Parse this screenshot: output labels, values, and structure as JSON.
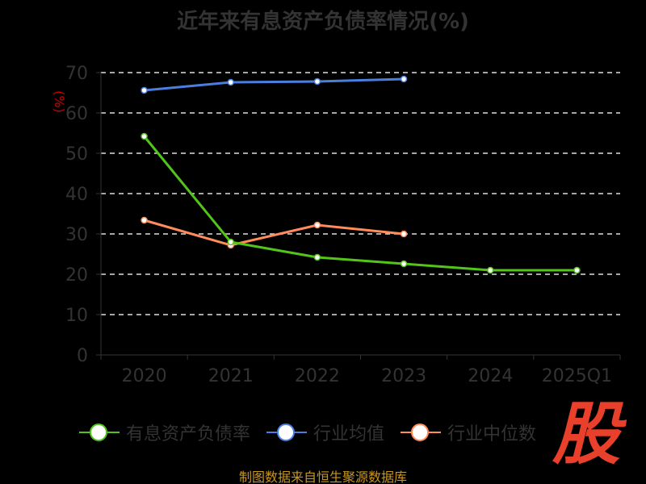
{
  "chart_data": {
    "type": "line",
    "title": "近年来有息资产负债率情况(%)",
    "ylabel": "(%)",
    "xlabel": "",
    "ylim": [
      0,
      70
    ],
    "yticks": [
      0,
      10,
      20,
      30,
      40,
      50,
      60,
      70
    ],
    "grid": true,
    "legend_position": "bottom",
    "categories": [
      "2020",
      "2021",
      "2022",
      "2023",
      "2024",
      "2025Q1"
    ],
    "series": [
      {
        "name": "有息资产负债率",
        "color": "#52c41a",
        "values": [
          54.2,
          28.0,
          24.2,
          22.6,
          21.0,
          21.0
        ]
      },
      {
        "name": "行业均值",
        "color": "#4a7fe0",
        "values": [
          65.6,
          67.6,
          67.8,
          68.4,
          null,
          null
        ]
      },
      {
        "name": "行业中位数",
        "color": "#ff8c5a",
        "values": [
          33.4,
          27.2,
          32.2,
          30.0,
          null,
          null
        ]
      }
    ]
  },
  "source": "制图数据来自恒生聚源数据库",
  "logo_text": "股"
}
